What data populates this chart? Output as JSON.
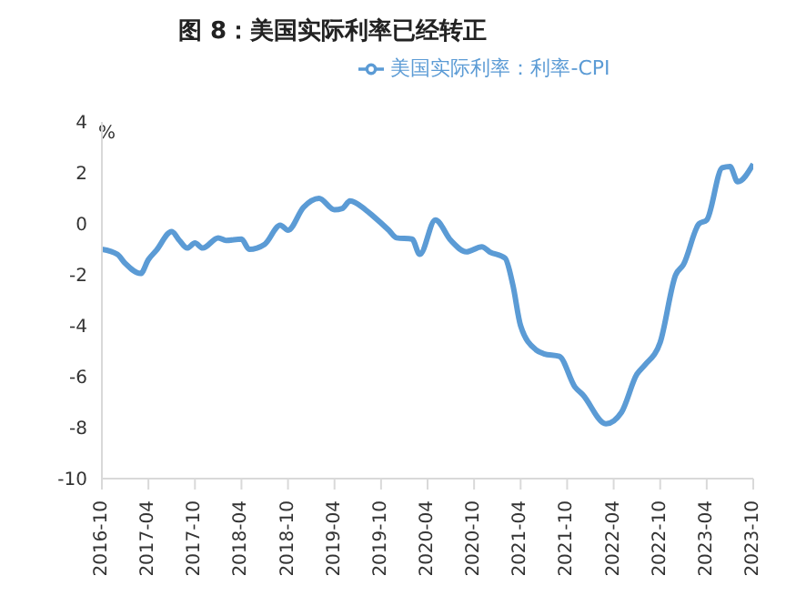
{
  "chart_data": {
    "type": "line",
    "title": "图 8：美国实际利率已经转正",
    "ylabel": "%",
    "legend": "top",
    "marker": "none",
    "line_style": "solid",
    "grid": false,
    "x": [
      "2016-10",
      "2016-12",
      "2017-01",
      "2017-03",
      "2017-04",
      "2017-05",
      "2017-07",
      "2017-08",
      "2017-09",
      "2017-10",
      "2017-11",
      "2018-01",
      "2018-02",
      "2018-04",
      "2018-05",
      "2018-07",
      "2018-09",
      "2018-10",
      "2018-12",
      "2019-02",
      "2019-04",
      "2019-05",
      "2019-06",
      "2019-08",
      "2019-09",
      "2019-11",
      "2019-12",
      "2020-02",
      "2020-03",
      "2020-05",
      "2020-07",
      "2020-09",
      "2020-11",
      "2020-12",
      "2021-02",
      "2021-03",
      "2021-04",
      "2021-06",
      "2021-07",
      "2021-09",
      "2021-11",
      "2021-12",
      "2022-03",
      "2022-05",
      "2022-07",
      "2022-08",
      "2022-10",
      "2022-12",
      "2023-01",
      "2023-03",
      "2023-04",
      "2023-06",
      "2023-07",
      "2023-08",
      "2023-10"
    ],
    "series": [
      {
        "name": "美国实际利率：利率-CPI",
        "color": "#5b9bd5",
        "values": [
          -1.0,
          -1.2,
          -1.55,
          -1.95,
          -1.4,
          -1.05,
          -0.3,
          -0.65,
          -0.95,
          -0.75,
          -0.95,
          -0.55,
          -0.65,
          -0.6,
          -1.0,
          -0.8,
          -0.05,
          -0.25,
          0.65,
          1.0,
          0.55,
          0.6,
          0.9,
          0.55,
          0.3,
          -0.25,
          -0.55,
          -0.6,
          -1.2,
          0.15,
          -0.65,
          -1.1,
          -0.9,
          -1.1,
          -1.35,
          -2.4,
          -4.0,
          -4.95,
          -5.1,
          -5.2,
          -6.4,
          -6.7,
          -7.85,
          -7.4,
          -5.9,
          -5.55,
          -4.65,
          -2.0,
          -1.6,
          0.0,
          0.15,
          2.2,
          2.25,
          1.65,
          2.35
        ]
      }
    ],
    "xlim": [
      "2016-10",
      "2023-10"
    ],
    "xticks": [
      "2016-10",
      "2017-04",
      "2017-10",
      "2018-04",
      "2018-10",
      "2019-04",
      "2019-10",
      "2020-04",
      "2020-10",
      "2021-04",
      "2021-10",
      "2022-04",
      "2022-10",
      "2023-04",
      "2023-10"
    ],
    "ylim": [
      -10,
      4
    ],
    "yticks": [
      -10,
      -8,
      -6,
      -4,
      -2,
      0,
      2,
      4
    ]
  }
}
